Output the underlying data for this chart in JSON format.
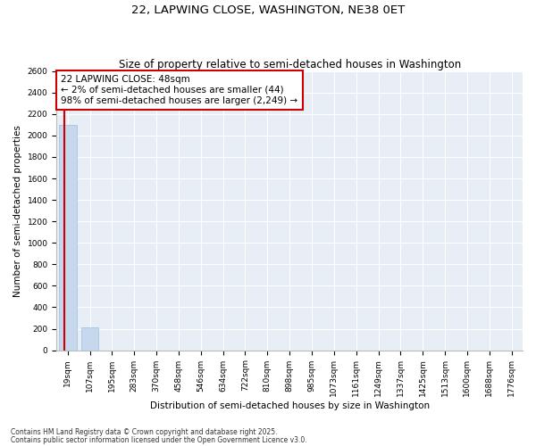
{
  "title1": "22, LAPWING CLOSE, WASHINGTON, NE38 0ET",
  "title2": "Size of property relative to semi-detached houses in Washington",
  "xlabel": "Distribution of semi-detached houses by size in Washington",
  "ylabel": "Number of semi-detached properties",
  "categories": [
    "19sqm",
    "107sqm",
    "195sqm",
    "283sqm",
    "370sqm",
    "458sqm",
    "546sqm",
    "634sqm",
    "722sqm",
    "810sqm",
    "898sqm",
    "985sqm",
    "1073sqm",
    "1161sqm",
    "1249sqm",
    "1337sqm",
    "1425sqm",
    "1513sqm",
    "1600sqm",
    "1688sqm",
    "1776sqm"
  ],
  "values": [
    2100,
    210,
    0,
    0,
    0,
    0,
    0,
    0,
    0,
    0,
    0,
    0,
    0,
    0,
    0,
    0,
    0,
    0,
    0,
    0,
    0
  ],
  "bar_color": "#c5d8ed",
  "bar_edgecolor": "#a0bdd8",
  "vline_color": "#cc0000",
  "ylim": [
    0,
    2600
  ],
  "yticks": [
    0,
    200,
    400,
    600,
    800,
    1000,
    1200,
    1400,
    1600,
    1800,
    2000,
    2200,
    2400,
    2600
  ],
  "annotation_line1": "22 LAPWING CLOSE: 48sqm",
  "annotation_line2": "← 2% of semi-detached houses are smaller (44)",
  "annotation_line3": "98% of semi-detached houses are larger (2,249) →",
  "annotation_box_color": "#cc0000",
  "footnote1": "Contains HM Land Registry data © Crown copyright and database right 2025.",
  "footnote2": "Contains public sector information licensed under the Open Government Licence v3.0.",
  "background_color": "#e8eef5",
  "grid_color": "#ffffff",
  "title1_fontsize": 9.5,
  "title2_fontsize": 8.5,
  "axis_label_fontsize": 7.5,
  "tick_fontsize": 6.5,
  "annotation_fontsize": 7.5,
  "footnote_fontsize": 5.5
}
